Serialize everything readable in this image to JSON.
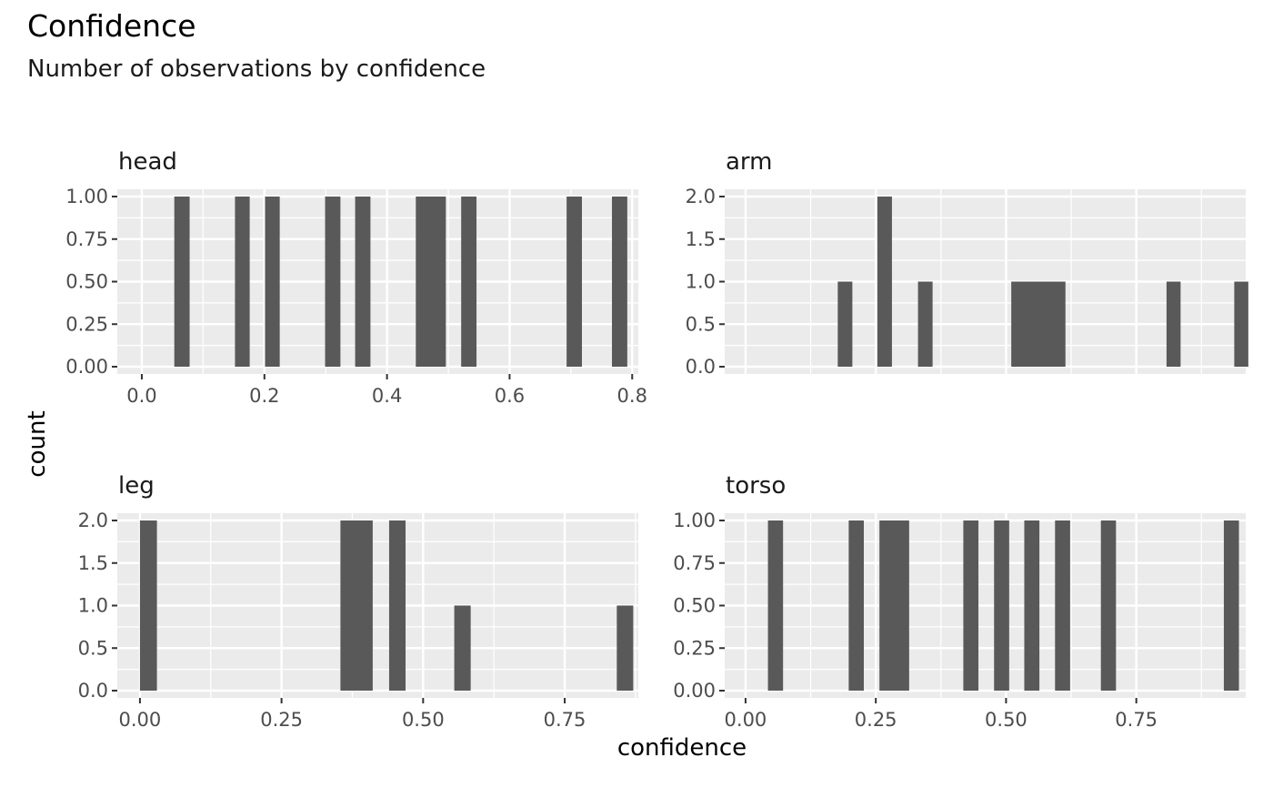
{
  "title": "Confidence",
  "subtitle": "Number of observations by confidence",
  "xlabel": "confidence",
  "ylabel": "count",
  "colors": {
    "panel_bg": "#ebebeb",
    "grid": "#ffffff",
    "bar": "#595959",
    "tick_text": "#4d4d4d",
    "tick_mark": "#333333"
  },
  "chart_data": {
    "type": "bar",
    "title": "Confidence",
    "subtitle": "Number of observations by confidence",
    "xlabel": "confidence",
    "ylabel": "count",
    "grid": true,
    "facets": [
      {
        "name": "head",
        "xlim": [
          -0.04,
          0.81
        ],
        "ylim": [
          0,
          1
        ],
        "x_ticks": [
          0.0,
          0.2,
          0.4,
          0.6,
          0.8
        ],
        "x_tick_labels": [
          "0.0",
          "0.2",
          "0.4",
          "0.6",
          "0.8"
        ],
        "y_ticks": [
          0,
          0.25,
          0.5,
          0.75,
          1
        ],
        "y_tick_labels": [
          "0.00",
          "0.25",
          "0.50",
          "0.75",
          "1.00"
        ],
        "show_x_axis": true,
        "bars": [
          {
            "x0": 0.053,
            "x1": 0.078,
            "count": 1
          },
          {
            "x0": 0.152,
            "x1": 0.176,
            "count": 1
          },
          {
            "x0": 0.201,
            "x1": 0.225,
            "count": 1
          },
          {
            "x0": 0.299,
            "x1": 0.324,
            "count": 1
          },
          {
            "x0": 0.348,
            "x1": 0.373,
            "count": 1
          },
          {
            "x0": 0.447,
            "x1": 0.496,
            "count": 1
          },
          {
            "x0": 0.521,
            "x1": 0.546,
            "count": 1
          },
          {
            "x0": 0.693,
            "x1": 0.718,
            "count": 1
          },
          {
            "x0": 0.767,
            "x1": 0.792,
            "count": 1
          }
        ]
      },
      {
        "name": "arm",
        "xlim": [
          -0.04,
          0.96
        ],
        "ylim": [
          0,
          2
        ],
        "x_ticks": [
          0.0,
          0.25,
          0.5,
          0.75
        ],
        "x_tick_labels": [],
        "y_ticks": [
          0,
          0.5,
          1,
          1.5,
          2
        ],
        "y_tick_labels": [
          "0.0",
          "0.5",
          "1.0",
          "1.5",
          "2.0"
        ],
        "show_x_axis": false,
        "bars": [
          {
            "x0": 0.177,
            "x1": 0.205,
            "count": 1
          },
          {
            "x0": 0.253,
            "x1": 0.281,
            "count": 2
          },
          {
            "x0": 0.331,
            "x1": 0.359,
            "count": 1
          },
          {
            "x0": 0.51,
            "x1": 0.614,
            "count": 1
          },
          {
            "x0": 0.808,
            "x1": 0.835,
            "count": 1
          },
          {
            "x0": 0.938,
            "x1": 0.965,
            "count": 1
          }
        ]
      },
      {
        "name": "leg",
        "xlim": [
          -0.04,
          0.88
        ],
        "ylim": [
          0,
          2
        ],
        "x_ticks": [
          0.0,
          0.25,
          0.5,
          0.75
        ],
        "x_tick_labels": [
          "0.00",
          "0.25",
          "0.50",
          "0.75"
        ],
        "y_ticks": [
          0,
          0.5,
          1,
          1.5,
          2
        ],
        "y_tick_labels": [
          "0.0",
          "0.5",
          "1.0",
          "1.5",
          "2.0"
        ],
        "show_x_axis": true,
        "bars": [
          {
            "x0": 0.0,
            "x1": 0.03,
            "count": 2
          },
          {
            "x0": 0.354,
            "x1": 0.411,
            "count": 2
          },
          {
            "x0": 0.44,
            "x1": 0.469,
            "count": 2
          },
          {
            "x0": 0.555,
            "x1": 0.584,
            "count": 1
          },
          {
            "x0": 0.842,
            "x1": 0.871,
            "count": 1
          }
        ]
      },
      {
        "name": "torso",
        "xlim": [
          -0.04,
          0.96
        ],
        "ylim": [
          0,
          1
        ],
        "x_ticks": [
          0.0,
          0.25,
          0.5,
          0.75
        ],
        "x_tick_labels": [
          "0.00",
          "0.25",
          "0.50",
          "0.75"
        ],
        "y_ticks": [
          0,
          0.25,
          0.5,
          0.75,
          1
        ],
        "y_tick_labels": [
          "0.00",
          "0.25",
          "0.50",
          "0.75",
          "1.00"
        ],
        "show_x_axis": true,
        "bars": [
          {
            "x0": 0.043,
            "x1": 0.072,
            "count": 1
          },
          {
            "x0": 0.198,
            "x1": 0.227,
            "count": 1
          },
          {
            "x0": 0.257,
            "x1": 0.314,
            "count": 1
          },
          {
            "x0": 0.418,
            "x1": 0.447,
            "count": 1
          },
          {
            "x0": 0.477,
            "x1": 0.506,
            "count": 1
          },
          {
            "x0": 0.535,
            "x1": 0.564,
            "count": 1
          },
          {
            "x0": 0.594,
            "x1": 0.623,
            "count": 1
          },
          {
            "x0": 0.682,
            "x1": 0.711,
            "count": 1
          },
          {
            "x0": 0.918,
            "x1": 0.947,
            "count": 1
          }
        ]
      }
    ]
  }
}
